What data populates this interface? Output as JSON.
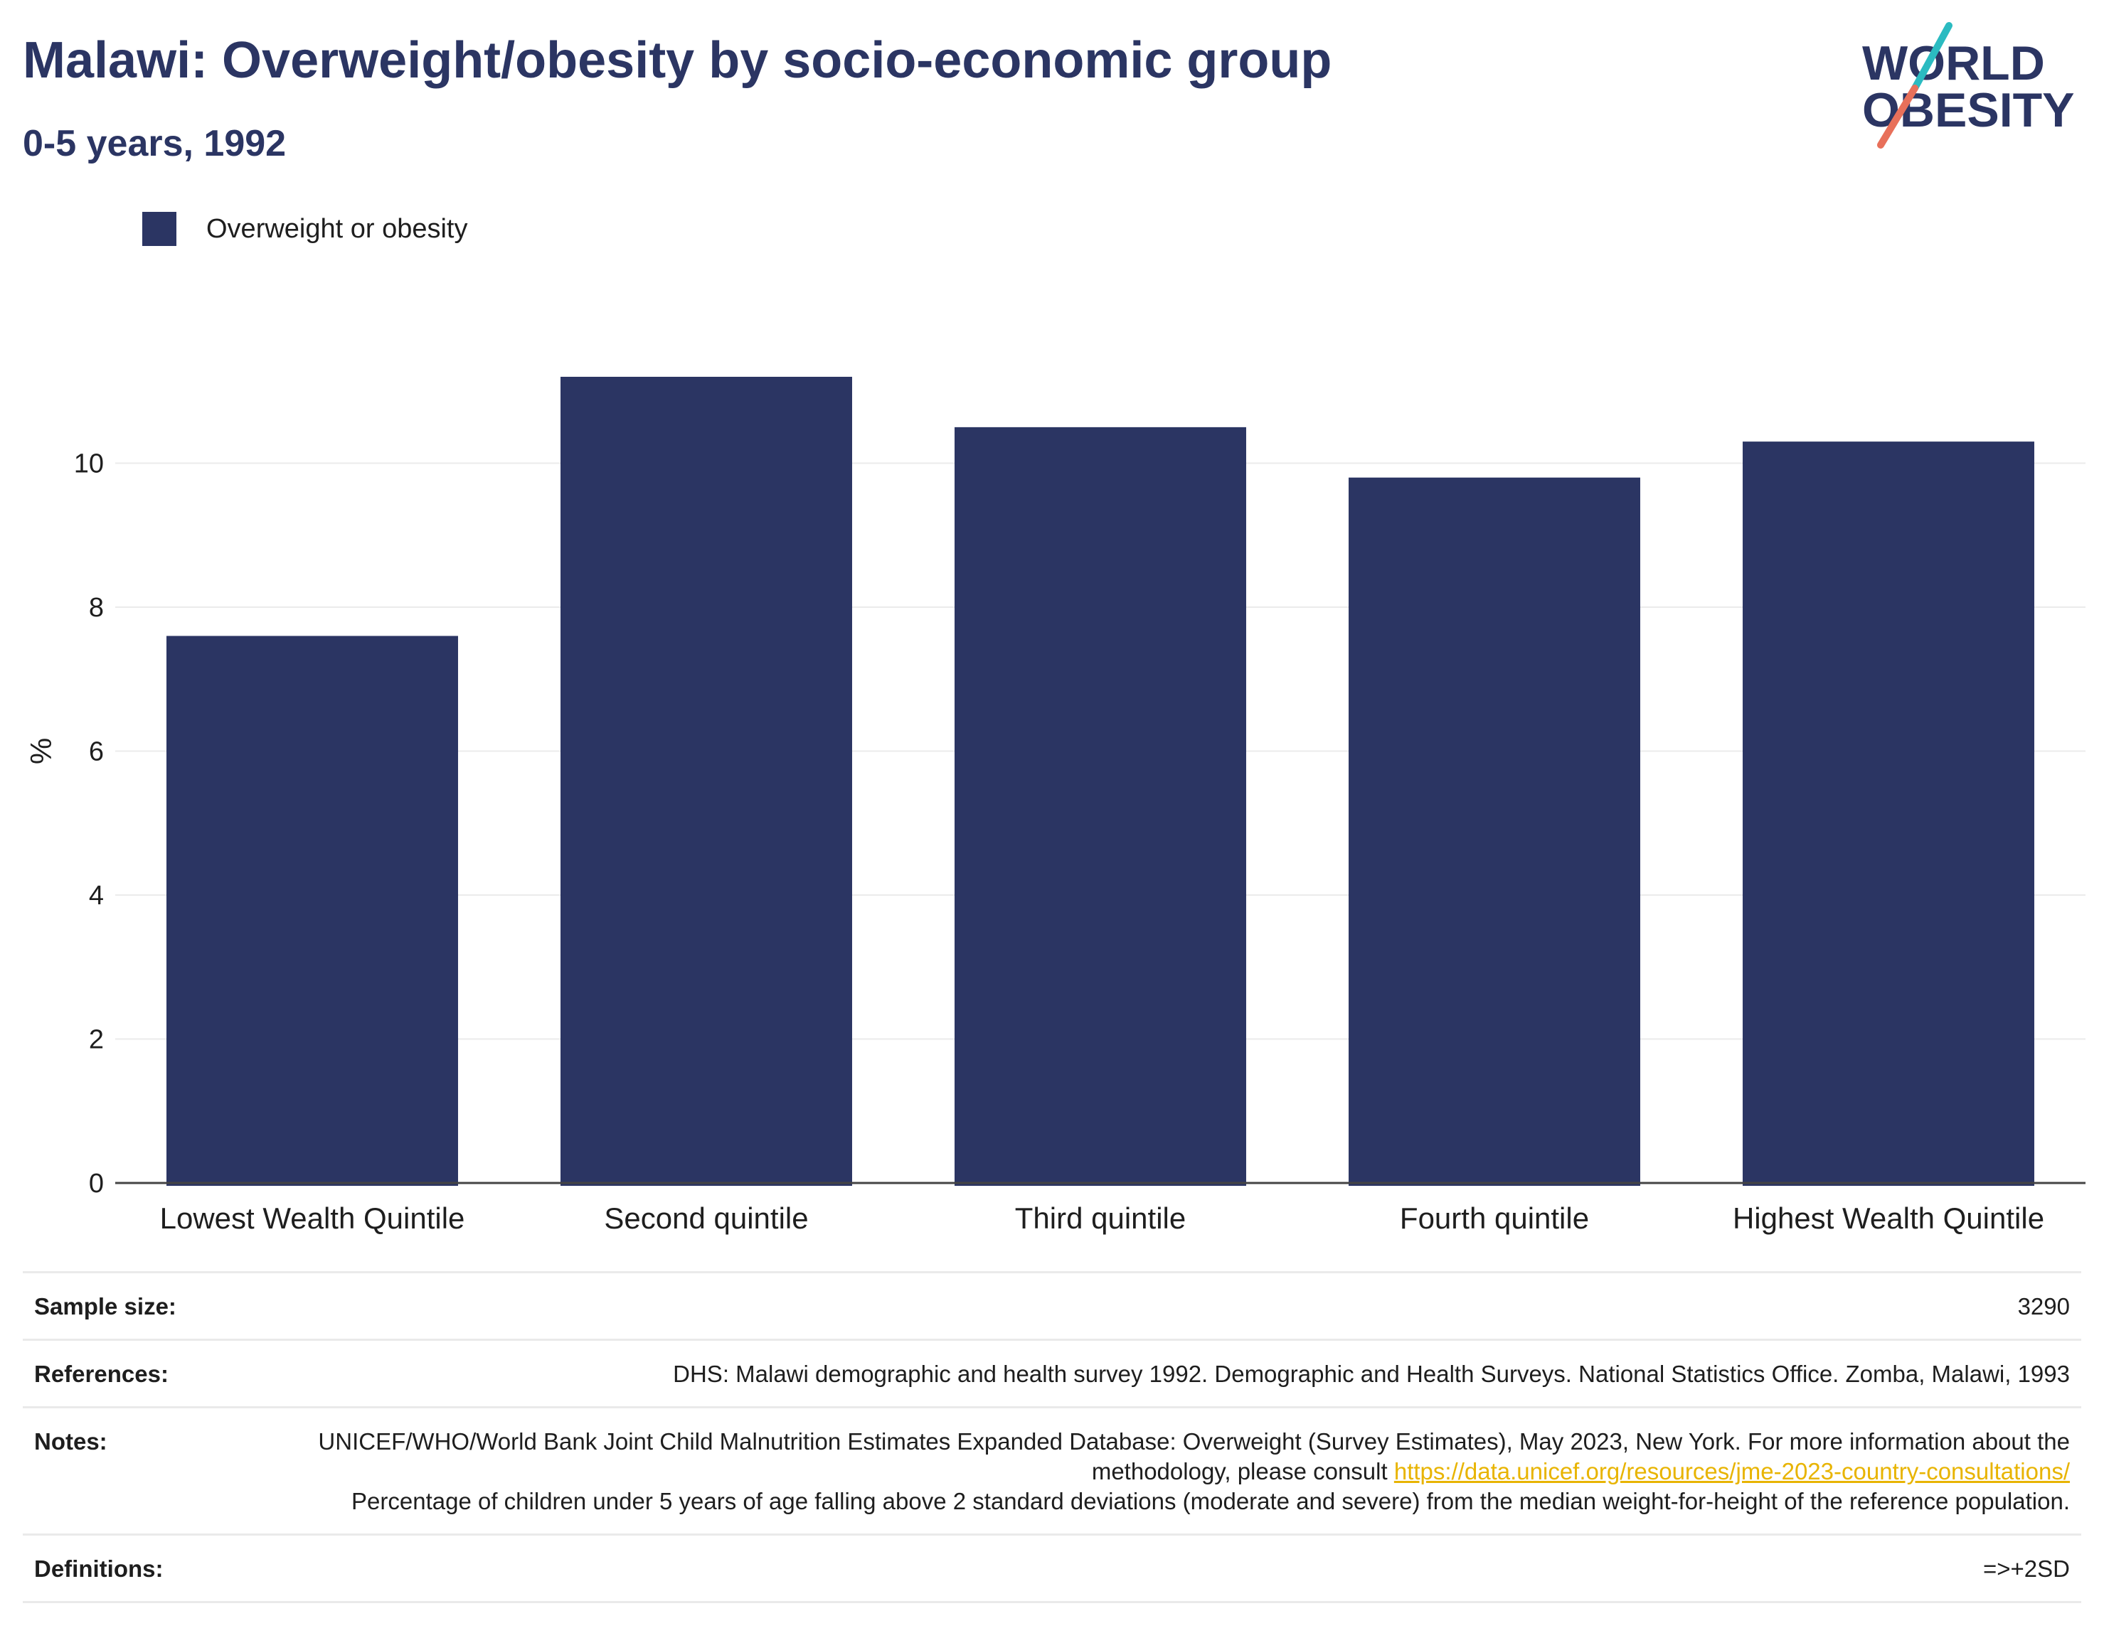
{
  "header": {
    "title": "Malawi: Overweight/obesity by socio-economic group",
    "subtitle": "0-5 years, 1992",
    "logo_text_line1": "WORLD",
    "logo_text_line2": "OBESITY"
  },
  "legend": {
    "items": [
      {
        "label": "Overweight or obesity",
        "color": "#2b3563"
      }
    ]
  },
  "chart_data": {
    "type": "bar",
    "categories": [
      "Lowest Wealth Quintile",
      "Second quintile",
      "Third quintile",
      "Fourth quintile",
      "Highest Wealth Quintile"
    ],
    "series": [
      {
        "name": "Overweight or obesity",
        "values": [
          7.6,
          11.2,
          10.5,
          9.8,
          10.3
        ],
        "color": "#2b3563"
      }
    ],
    "ylabel": "%",
    "ylim": [
      0,
      11.2
    ],
    "yticks": [
      0,
      2,
      4,
      6,
      8,
      10
    ],
    "grid": true,
    "legend_position": "top-left"
  },
  "info": {
    "rows": [
      {
        "key": "Sample size:",
        "value": "3290"
      },
      {
        "key": "References:",
        "value": "DHS: Malawi demographic and health survey 1992. Demographic and Health Surveys. National Statistics Office. Zomba, Malawi, 1993"
      },
      {
        "key": "Notes:",
        "value_before_link": "UNICEF/WHO/World Bank Joint Child Malnutrition Estimates Expanded Database: Overweight (Survey Estimates), May 2023, New York. For more information about the methodology, please consult ",
        "link": "https://data.unicef.org/resources/jme-2023-country-consultations/",
        "value_after_link": "Percentage of children under 5 years of age falling above 2 standard deviations (moderate and severe) from the median weight-for-height of the reference population."
      },
      {
        "key": "Definitions:",
        "value": "=>+2SD"
      }
    ]
  },
  "colors": {
    "accent": "#2b3563",
    "link": "#e8b400",
    "logo_teal": "#2bbbc1",
    "logo_coral": "#e8705a",
    "grid": "#ebebeb"
  }
}
